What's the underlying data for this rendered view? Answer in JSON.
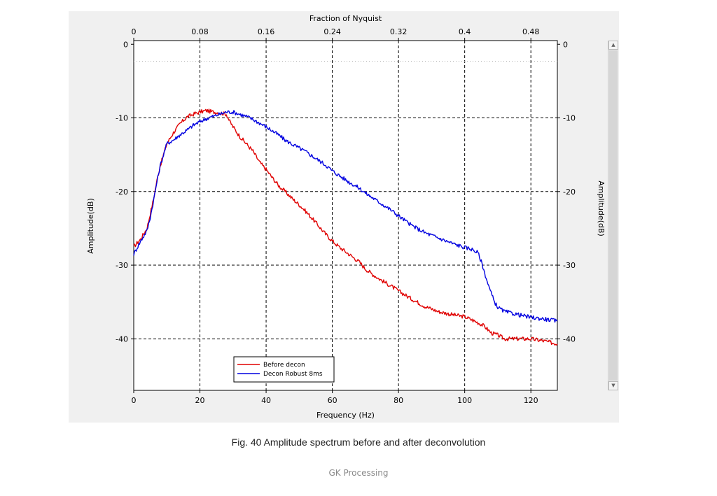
{
  "caption": "Fig. 40 Amplitude spectrum before and after deconvolution",
  "watermark": "GK Processing",
  "chart_data": {
    "type": "line",
    "title": "",
    "xlabel": "Frequency (Hz)",
    "x2label": "Fraction of Nyquist",
    "ylabel": "Amplitude(dB)",
    "y2label": "Amplitude(dB)",
    "xlim": [
      0,
      128
    ],
    "ylim": [
      -47,
      0.5
    ],
    "x_ticks": [
      0,
      20,
      40,
      60,
      80,
      100,
      120
    ],
    "x2_ticks": [
      "0",
      "0.08",
      "0.16",
      "0.24",
      "0.32",
      "0.4",
      "0.48"
    ],
    "y_ticks": [
      0,
      -10,
      -20,
      -30,
      -40
    ],
    "grid": true,
    "reference_line_db": -2.3,
    "legend_position": "bottom-center",
    "colors": {
      "before": "#e00000",
      "after": "#0000e0"
    },
    "series": [
      {
        "name": "Before decon",
        "color": "#e00000",
        "x": [
          0,
          2,
          4,
          5,
          6,
          7,
          8,
          10,
          12,
          14,
          16,
          18,
          20,
          22,
          24,
          26,
          28,
          29,
          30,
          32,
          34,
          36,
          38,
          40,
          42,
          44,
          46,
          48,
          50,
          52,
          55,
          58,
          60,
          62,
          65,
          68,
          70,
          72,
          75,
          78,
          80,
          84,
          88,
          92,
          96,
          100,
          104,
          106,
          108,
          110,
          112,
          115,
          118,
          120,
          124,
          128
        ],
        "y": [
          -27.5,
          -26.5,
          -25,
          -23,
          -21,
          -18.5,
          -16.5,
          -13.5,
          -12,
          -10.8,
          -9.9,
          -9.5,
          -9.2,
          -9.0,
          -9.2,
          -9.3,
          -9.5,
          -10.5,
          -11.2,
          -12.5,
          -13.5,
          -14.5,
          -16,
          -17,
          -18.2,
          -19.3,
          -20.1,
          -21,
          -21.8,
          -22.7,
          -24.2,
          -25.8,
          -26.7,
          -27.5,
          -28.5,
          -29.5,
          -30.5,
          -31.2,
          -32.1,
          -32.9,
          -33.5,
          -34.6,
          -35.6,
          -36.3,
          -36.7,
          -37,
          -37.8,
          -38.3,
          -39.2,
          -39.5,
          -40,
          -40,
          -40,
          -40,
          -40.3,
          -40.7
        ]
      },
      {
        "name": "Decon Robust 8ms",
        "color": "#0000e0",
        "x": [
          0,
          2,
          4,
          5,
          6,
          7,
          8,
          10,
          12,
          14,
          16,
          18,
          20,
          22,
          24,
          26,
          28,
          30,
          32,
          34,
          36,
          38,
          40,
          42,
          44,
          46,
          48,
          50,
          52,
          55,
          58,
          60,
          62,
          65,
          68,
          70,
          72,
          75,
          78,
          80,
          84,
          88,
          92,
          96,
          100,
          102,
          104,
          105,
          106,
          107,
          108,
          109,
          110,
          112,
          115,
          118,
          120,
          124,
          128
        ],
        "y": [
          -28.5,
          -26.8,
          -25.3,
          -23.5,
          -21.2,
          -18.7,
          -16.5,
          -13.5,
          -13,
          -12.3,
          -11.7,
          -11,
          -10.5,
          -10.1,
          -9.8,
          -9.5,
          -9.2,
          -9.2,
          -9.5,
          -9.8,
          -10.2,
          -10.7,
          -11.2,
          -11.8,
          -12.4,
          -13.1,
          -13.6,
          -14.1,
          -14.6,
          -15.5,
          -16.4,
          -17.2,
          -17.8,
          -18.7,
          -19.5,
          -20.2,
          -20.8,
          -21.7,
          -22.6,
          -23.3,
          -24.6,
          -25.6,
          -26.3,
          -27,
          -27.6,
          -27.8,
          -28.3,
          -29.5,
          -31,
          -32.5,
          -33.8,
          -35,
          -35.7,
          -36.3,
          -36.6,
          -36.9,
          -37.1,
          -37.3,
          -37.6
        ]
      }
    ]
  }
}
